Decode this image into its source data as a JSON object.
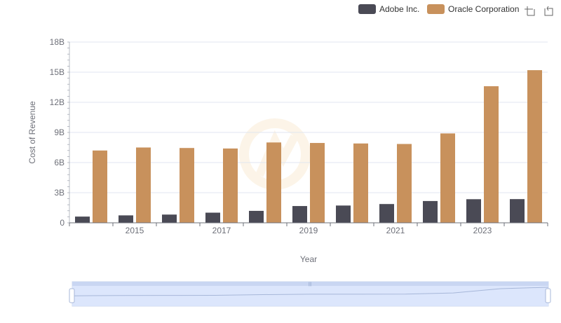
{
  "chart_data": {
    "type": "bar",
    "categories": [
      "2014",
      "2015",
      "2016",
      "2017",
      "2018",
      "2019",
      "2020",
      "2021",
      "2022",
      "2023",
      "2024"
    ],
    "x_tick_labels": [
      "2015",
      "2017",
      "2019",
      "2021",
      "2023"
    ],
    "series": [
      {
        "name": "Adobe Inc.",
        "color": "#4a4a55",
        "values": [
          0.62,
          0.74,
          0.82,
          1.01,
          1.19,
          1.67,
          1.72,
          1.87,
          2.17,
          2.35,
          2.36
        ]
      },
      {
        "name": "Oracle Corporation",
        "color": "#c8915c",
        "values": [
          7.2,
          7.5,
          7.45,
          7.4,
          8.0,
          7.95,
          7.9,
          7.85,
          8.9,
          13.6,
          15.2
        ]
      }
    ],
    "xlabel": "Year",
    "ylabel": "Cost of Revenue",
    "ylim": [
      0,
      18
    ],
    "y_ticks": [
      0,
      3,
      6,
      9,
      12,
      15,
      18
    ],
    "y_tick_labels": [
      "0",
      "3B",
      "6B",
      "9B",
      "12B",
      "15B",
      "18B"
    ],
    "grid": true,
    "legend_position": "top-right"
  },
  "toolbar": {
    "zoom_icon": "zoom-select-icon",
    "restore_icon": "restore-icon"
  },
  "colors": {
    "grid": "#e0e6f1",
    "axis": "#6e7079",
    "slider_fill": "#d6e2fb",
    "slider_border": "#a7b7d9"
  }
}
